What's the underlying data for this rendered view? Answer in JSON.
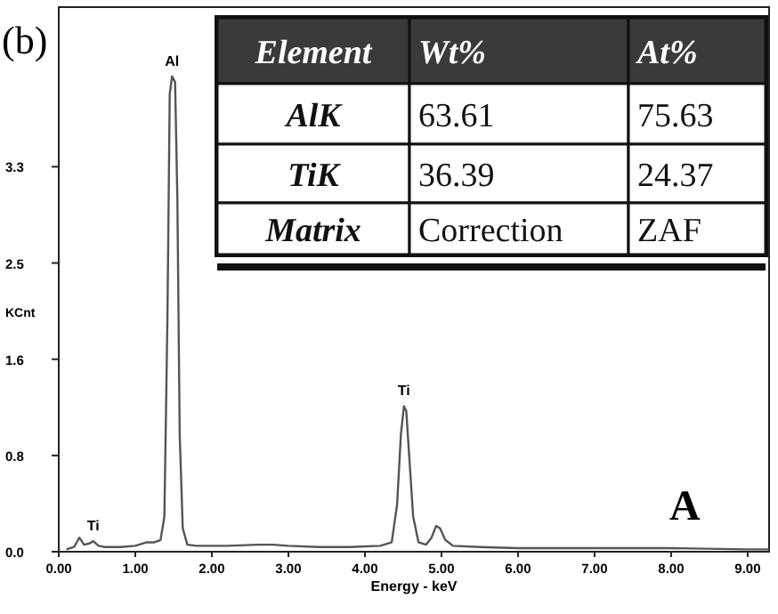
{
  "chart_data": {
    "type": "line",
    "xlabel": "Energy - keV",
    "ylabel": "KCnt",
    "xlim": [
      0,
      9.28
    ],
    "ylim": [
      0,
      4.64
    ],
    "xticks": [
      {
        "value": 0,
        "label": "0.00"
      },
      {
        "value": 1,
        "label": "1.00"
      },
      {
        "value": 2,
        "label": "2.00"
      },
      {
        "value": 3,
        "label": "3.00"
      },
      {
        "value": 4,
        "label": "4.00"
      },
      {
        "value": 5,
        "label": "5.00"
      },
      {
        "value": 6,
        "label": "6.00"
      },
      {
        "value": 7,
        "label": "7.00"
      },
      {
        "value": 8,
        "label": "8.00"
      },
      {
        "value": 9,
        "label": "9.00"
      }
    ],
    "yticks": [
      {
        "value": 0,
        "label": "0.0"
      },
      {
        "value": 0.82,
        "label": "0.8"
      },
      {
        "value": 1.64,
        "label": "1.6"
      },
      {
        "value": 2.46,
        "label": "2.5"
      },
      {
        "value": 3.28,
        "label": "3.3"
      }
    ],
    "grid": false,
    "marker": "none",
    "line_style": "solid",
    "series": [
      {
        "color": "#555555",
        "x": [
          0.1,
          0.2,
          0.27,
          0.33,
          0.4,
          0.45,
          0.52,
          0.6,
          0.8,
          1.0,
          1.15,
          1.25,
          1.33,
          1.38,
          1.42,
          1.45,
          1.48,
          1.52,
          1.55,
          1.58,
          1.62,
          1.68,
          1.8,
          2.2,
          2.6,
          2.8,
          3.0,
          3.4,
          3.8,
          4.2,
          4.35,
          4.42,
          4.47,
          4.51,
          4.54,
          4.58,
          4.63,
          4.7,
          4.8,
          4.87,
          4.93,
          4.98,
          5.05,
          5.15,
          5.5,
          6.0,
          7.0,
          8.0,
          9.0,
          9.28
        ],
        "values": [
          0.02,
          0.04,
          0.12,
          0.06,
          0.07,
          0.09,
          0.05,
          0.04,
          0.04,
          0.05,
          0.08,
          0.08,
          0.1,
          0.3,
          2.0,
          3.9,
          4.05,
          4.0,
          3.0,
          1.0,
          0.2,
          0.06,
          0.05,
          0.05,
          0.06,
          0.06,
          0.05,
          0.04,
          0.04,
          0.05,
          0.08,
          0.4,
          1.0,
          1.24,
          1.2,
          0.8,
          0.3,
          0.08,
          0.06,
          0.12,
          0.22,
          0.2,
          0.1,
          0.05,
          0.04,
          0.03,
          0.03,
          0.03,
          0.02,
          0.02
        ]
      }
    ],
    "annotations": [
      "(b)",
      "A",
      {
        "text": "Al",
        "x": 1.48,
        "y": 4.05
      },
      {
        "text": "Ti",
        "x": 0.45,
        "y": 0.09
      },
      {
        "text": "Ti",
        "x": 4.51,
        "y": 1.24
      },
      "Element",
      "Wt%",
      "At%",
      "AlK",
      "63.61",
      "75.63",
      "TiK",
      "36.39",
      "24.37",
      "Matrix",
      "Correction",
      "ZAF"
    ]
  }
}
